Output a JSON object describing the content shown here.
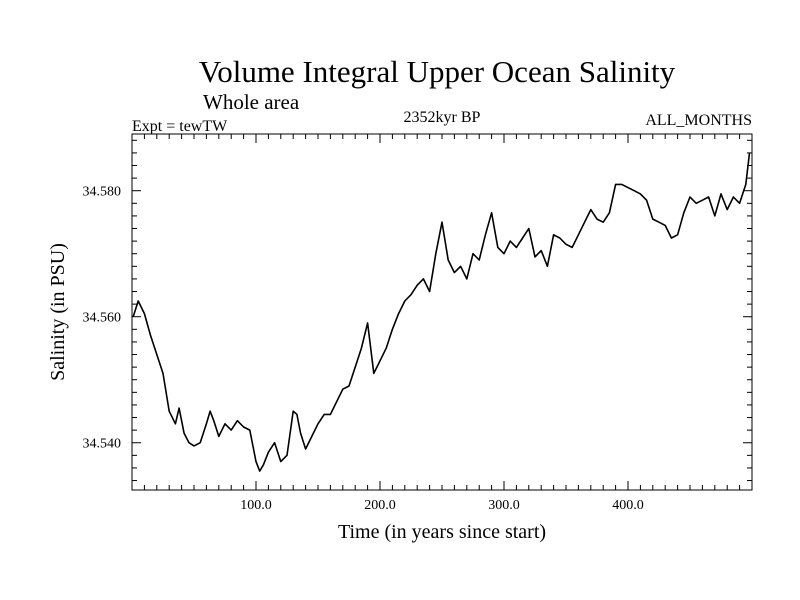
{
  "chart_data": {
    "type": "line",
    "title": "Volume Integral Upper Ocean Salinity",
    "subtitle": "Whole area",
    "left_header": "Expt = tewTW",
    "center_header": "2352kyr BP",
    "right_header": "ALL_MONTHS",
    "xlabel": "Time (in years since start)",
    "ylabel": "Salinity (in PSU)",
    "xlim": [
      0,
      500
    ],
    "ylim": [
      34.5325,
      34.589
    ],
    "x_ticks": [
      100,
      200,
      300,
      400
    ],
    "x_tick_labels": [
      "100.0",
      "200.0",
      "300.0",
      "400.0"
    ],
    "y_ticks": [
      34.54,
      34.56,
      34.58
    ],
    "y_tick_labels": [
      "34.540",
      "34.560",
      "34.580"
    ],
    "series": [
      {
        "name": "Salinity",
        "x": [
          1,
          5,
          10,
          15,
          20,
          25,
          30,
          35,
          38,
          42,
          46,
          50,
          55,
          60,
          63,
          66,
          70,
          75,
          80,
          85,
          90,
          95,
          100,
          103,
          106,
          110,
          115,
          120,
          125,
          130,
          133,
          136,
          140,
          145,
          150,
          155,
          160,
          165,
          170,
          175,
          180,
          185,
          190,
          195,
          200,
          205,
          210,
          215,
          220,
          225,
          230,
          235,
          240,
          245,
          250,
          255,
          260,
          265,
          270,
          275,
          280,
          285,
          290,
          295,
          300,
          305,
          310,
          315,
          320,
          325,
          330,
          335,
          340,
          345,
          350,
          355,
          360,
          365,
          370,
          375,
          380,
          385,
          390,
          395,
          400,
          405,
          410,
          415,
          420,
          425,
          430,
          435,
          440,
          445,
          450,
          455,
          460,
          465,
          470,
          475,
          480,
          485,
          490,
          495,
          498
        ],
        "values": [
          34.56,
          34.5625,
          34.5605,
          34.557,
          34.554,
          34.551,
          34.545,
          34.543,
          34.5455,
          34.5415,
          34.54,
          34.5395,
          34.54,
          34.543,
          34.545,
          34.5435,
          34.541,
          34.543,
          34.542,
          34.5435,
          34.5425,
          34.542,
          34.537,
          34.5355,
          34.5365,
          34.5385,
          34.54,
          34.537,
          34.538,
          34.545,
          34.5445,
          34.5415,
          34.539,
          34.541,
          34.543,
          34.5445,
          34.5445,
          34.5465,
          34.5485,
          34.549,
          34.552,
          34.555,
          34.559,
          34.551,
          34.553,
          34.555,
          34.558,
          34.5605,
          34.5625,
          34.5635,
          34.565,
          34.566,
          34.564,
          34.57,
          34.575,
          34.569,
          34.567,
          34.568,
          34.566,
          34.57,
          34.569,
          34.573,
          34.5765,
          34.571,
          34.57,
          34.572,
          34.571,
          34.5725,
          34.574,
          34.5695,
          34.5705,
          34.568,
          34.573,
          34.5725,
          34.5715,
          34.571,
          34.573,
          34.575,
          34.577,
          34.5755,
          34.575,
          34.5765,
          34.581,
          34.581,
          34.5805,
          34.58,
          34.5795,
          34.5785,
          34.5755,
          34.575,
          34.5745,
          34.5725,
          34.573,
          34.5765,
          34.579,
          34.578,
          34.5785,
          34.579,
          34.576,
          34.5795,
          34.577,
          34.579,
          34.578,
          34.581,
          34.586
        ]
      }
    ]
  }
}
